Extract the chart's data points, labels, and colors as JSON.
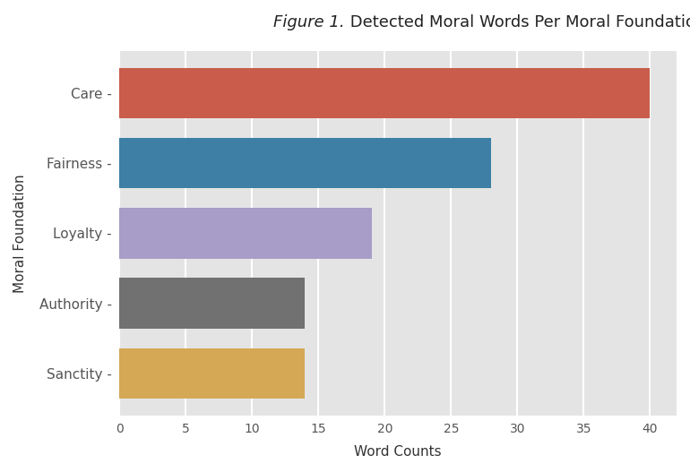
{
  "categories": [
    "Sanctity",
    "Authority",
    "Loyalty",
    "Fairness",
    "Care"
  ],
  "values": [
    14,
    14,
    19,
    28,
    40
  ],
  "bar_colors": [
    "#D4A855",
    "#717171",
    "#A89CC8",
    "#3D7FA5",
    "#C95C4B"
  ],
  "title_italic": "Figure 1.",
  "title_normal": " Detected Moral Words Per Moral Foundation",
  "xlabel": "Word Counts",
  "ylabel": "Moral Foundation",
  "xlim": [
    0,
    42
  ],
  "xticks": [
    0,
    5,
    10,
    15,
    20,
    25,
    30,
    35,
    40
  ],
  "plot_bg_color": "#E4E4E4",
  "figure_bg_color": "#FFFFFF",
  "title_fontsize": 13,
  "axis_label_fontsize": 11,
  "tick_fontsize": 10,
  "bar_height": 0.72,
  "grid_color": "#FFFFFF",
  "grid_linewidth": 1.5,
  "ytick_color": "#555555",
  "xtick_color": "#555555"
}
